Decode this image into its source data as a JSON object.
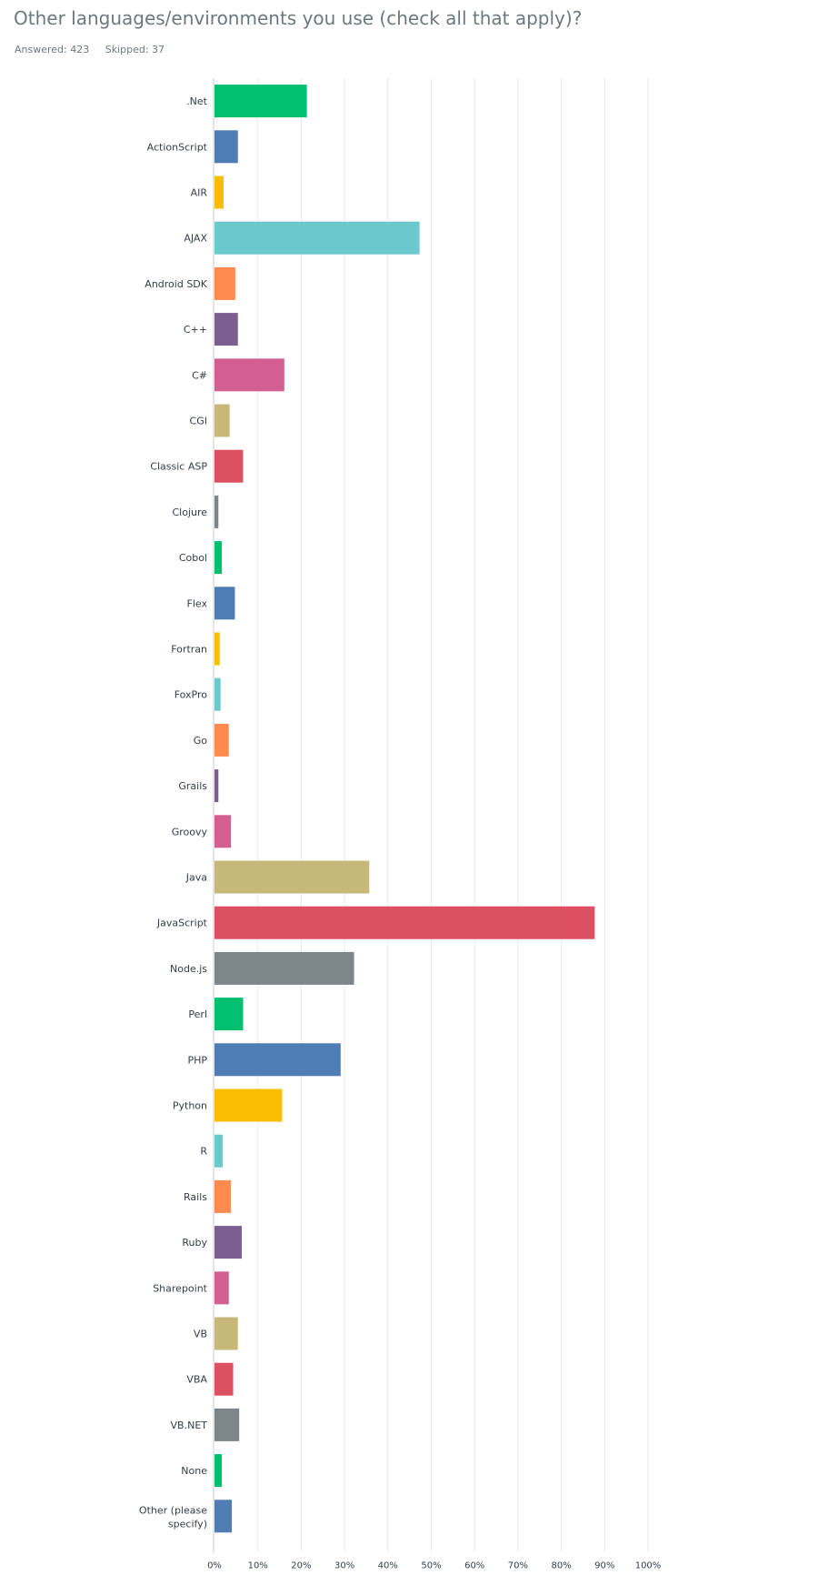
{
  "question": {
    "title": "Other languages/environments you use (check all that apply)?",
    "answered_label": "Answered: 423",
    "skipped_label": "Skipped: 37"
  },
  "chart_data": {
    "type": "bar",
    "orientation": "horizontal",
    "categories": [
      ".Net",
      "ActionScript",
      "AIR",
      "AJAX",
      "Android SDK",
      "C++",
      "C#",
      "CGI",
      "Classic ASP",
      "Clojure",
      "Cobol",
      "Flex",
      "Fortran",
      "FoxPro",
      "Go",
      "Grails",
      "Groovy",
      "Java",
      "JavaScript",
      "Node.js",
      "Perl",
      "PHP",
      "Python",
      "R",
      "Rails",
      "Ruby",
      "Sharepoint",
      "VB",
      "VBA",
      "VB.NET",
      "None",
      "Other (please specify)"
    ],
    "values": [
      21.3,
      5.4,
      2.1,
      47.3,
      4.8,
      5.4,
      16.1,
      3.5,
      6.6,
      0.9,
      1.7,
      4.7,
      1.2,
      1.4,
      3.3,
      0.9,
      3.8,
      35.7,
      87.7,
      32.2,
      6.6,
      29.1,
      15.6,
      1.9,
      3.8,
      6.3,
      3.3,
      5.4,
      4.3,
      5.7,
      1.7,
      4.0
    ],
    "bar_colors": [
      "#00bf6f",
      "#507cb6",
      "#f9be00",
      "#6bc8cd",
      "#ff8b4f",
      "#7d5e90",
      "#d25f90",
      "#c7b879",
      "#dd5061",
      "#7c868b",
      "#00bf6f",
      "#507cb6",
      "#f9be00",
      "#6bc8cd",
      "#ff8b4f",
      "#7d5e90",
      "#d25f90",
      "#c7b879",
      "#dd5061",
      "#7c868b",
      "#00bf6f",
      "#507cb6",
      "#f9be00",
      "#6bc8cd",
      "#ff8b4f",
      "#7d5e90",
      "#d25f90",
      "#c7b879",
      "#dd5061",
      "#7c868b",
      "#00bf6f",
      "#507cb6"
    ],
    "x_ticks": [
      "0%",
      "10%",
      "20%",
      "30%",
      "40%",
      "50%",
      "60%",
      "70%",
      "80%",
      "90%",
      "100%"
    ],
    "xlim": [
      0,
      100
    ],
    "grid": true,
    "legend": false
  }
}
